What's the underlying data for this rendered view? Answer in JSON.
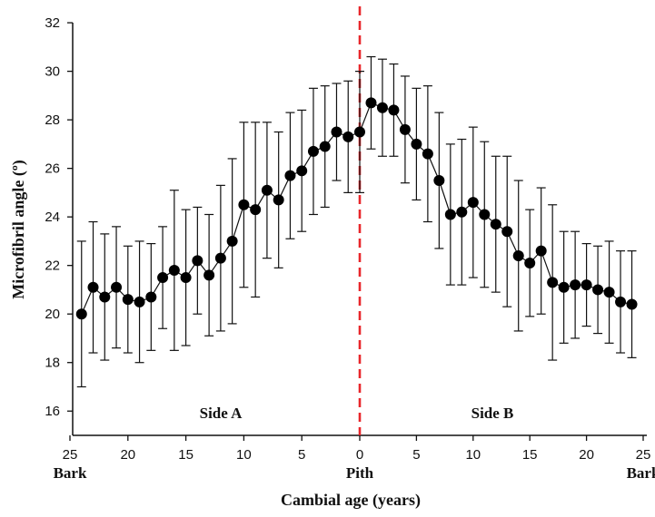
{
  "chart_data": {
    "type": "line",
    "title": "",
    "xlabel": "Cambial age (years)",
    "ylabel": "Microfibril angle  (º)",
    "ylim": [
      15,
      32
    ],
    "y_ticks": [
      16,
      18,
      20,
      22,
      24,
      26,
      28,
      30,
      32
    ],
    "x_ticks": [
      {
        "label": "25",
        "sub": "Bark"
      },
      {
        "label": "20",
        "sub": ""
      },
      {
        "label": "15",
        "sub": ""
      },
      {
        "label": "10",
        "sub": ""
      },
      {
        "label": "5",
        "sub": ""
      },
      {
        "label": "0",
        "sub": "Pith"
      },
      {
        "label": "5",
        "sub": ""
      },
      {
        "label": "10",
        "sub": ""
      },
      {
        "label": "15",
        "sub": ""
      },
      {
        "label": "20",
        "sub": ""
      },
      {
        "label": "25",
        "sub": "Bark"
      }
    ],
    "region_labels": {
      "side_a": "Side A",
      "side_b": "Side B"
    },
    "divider": {
      "color": "#e8262b",
      "style": "dashed",
      "at": "Pith"
    },
    "marker_color": "#000000",
    "grid": false,
    "legend": "none",
    "series": [
      {
        "side": "A",
        "x": [
          24,
          23,
          22,
          21,
          20,
          19,
          18,
          17,
          16,
          15,
          14,
          13,
          12,
          11,
          10,
          9,
          8,
          7,
          6,
          5,
          4,
          3,
          2,
          1,
          0
        ],
        "values": [
          20.0,
          21.1,
          20.7,
          21.1,
          20.6,
          20.5,
          20.7,
          21.5,
          21.8,
          21.5,
          22.2,
          21.6,
          22.3,
          23.0,
          24.5,
          24.3,
          25.1,
          24.7,
          25.7,
          25.9,
          26.7,
          26.9,
          27.5,
          27.3,
          27.5
        ],
        "err": [
          3.0,
          2.7,
          2.6,
          2.5,
          2.2,
          2.5,
          2.2,
          2.1,
          3.3,
          2.8,
          2.2,
          2.5,
          3.0,
          3.4,
          3.4,
          3.6,
          2.8,
          2.8,
          2.6,
          2.5,
          2.6,
          2.5,
          2.0,
          2.3,
          2.5
        ]
      },
      {
        "side": "B",
        "x": [
          1,
          2,
          3,
          4,
          5,
          6,
          7,
          8,
          9,
          10,
          11,
          12,
          13,
          14,
          15,
          16,
          17,
          18,
          19,
          20,
          21,
          22,
          23,
          24
        ],
        "values": [
          28.7,
          28.5,
          28.4,
          27.6,
          27.0,
          26.6,
          25.5,
          24.1,
          24.2,
          24.6,
          24.1,
          23.7,
          23.4,
          22.4,
          22.1,
          22.6,
          21.3,
          21.1,
          21.2,
          21.2,
          21.0,
          20.9,
          20.5,
          20.4
        ],
        "err": [
          1.9,
          2.0,
          1.9,
          2.2,
          2.3,
          2.8,
          2.8,
          2.9,
          3.0,
          3.1,
          3.0,
          2.8,
          3.1,
          3.1,
          2.2,
          2.6,
          3.2,
          2.3,
          2.2,
          1.7,
          1.8,
          2.1,
          2.1,
          2.2
        ]
      }
    ]
  }
}
